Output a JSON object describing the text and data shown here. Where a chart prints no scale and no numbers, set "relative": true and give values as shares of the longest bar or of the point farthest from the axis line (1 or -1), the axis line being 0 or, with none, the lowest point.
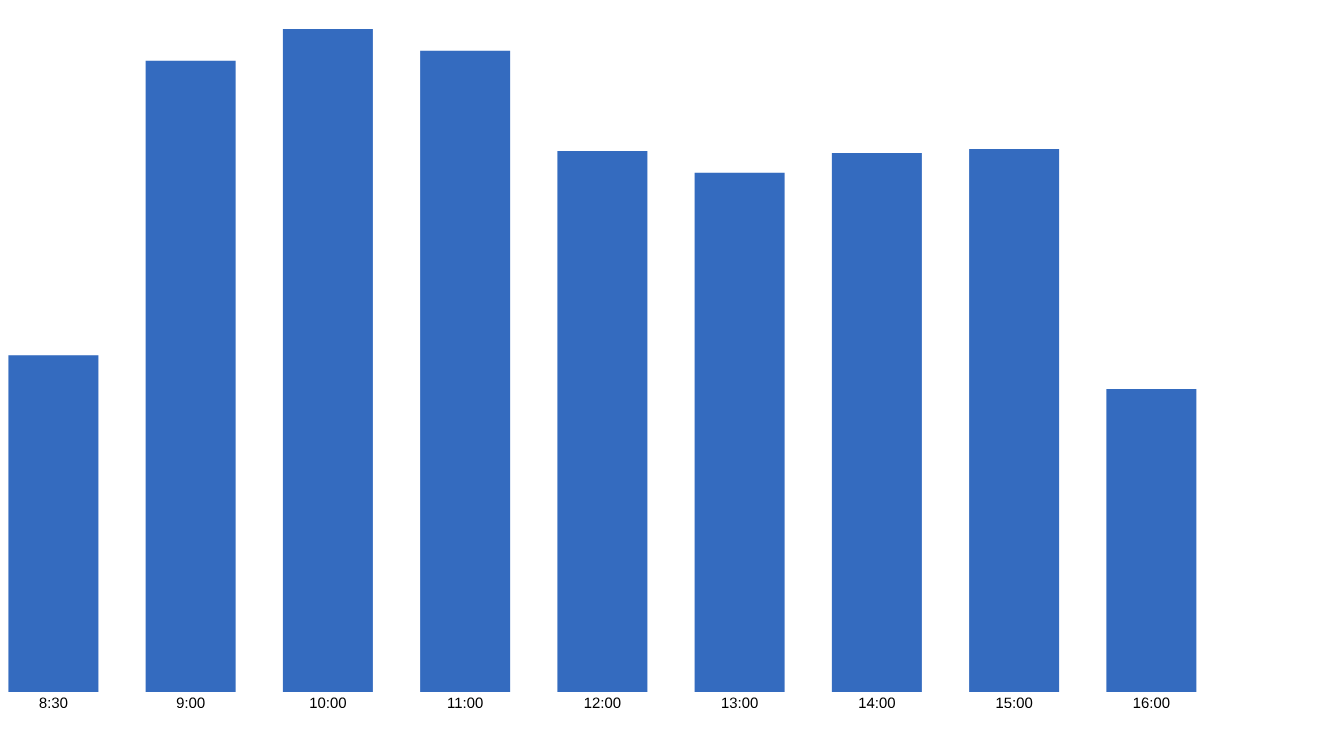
{
  "chart_data": {
    "type": "bar",
    "relative": true,
    "categories": [
      "8:30",
      "9:00",
      "10:00",
      "11:00",
      "12:00",
      "13:00",
      "14:00",
      "15:00",
      "16:00"
    ],
    "values": [
      0.508,
      0.952,
      1,
      0.967,
      0.816,
      0.783,
      0.813,
      0.819,
      0.457
    ],
    "color": "#346bbf"
  }
}
